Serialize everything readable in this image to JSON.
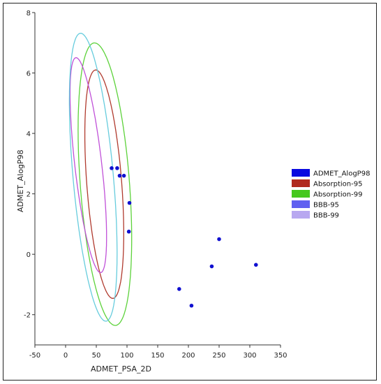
{
  "chart_data": {
    "type": "scatter",
    "title": "",
    "xlabel": "ADMET_PSA_2D",
    "ylabel": "ADMET_AlogP98",
    "xlim": [
      -50,
      350
    ],
    "ylim": [
      -3,
      8
    ],
    "x_ticks": [
      -50,
      0,
      50,
      100,
      150,
      200,
      250,
      300,
      350
    ],
    "y_ticks": [
      -2,
      0,
      2,
      4,
      6,
      8
    ],
    "grid": false,
    "legend_position": "right",
    "series": [
      {
        "name": "ADMET_AlogP98",
        "kind": "points",
        "color": "#1010d0",
        "points": [
          [
            75,
            2.85
          ],
          [
            84,
            2.85
          ],
          [
            88,
            2.6
          ],
          [
            95,
            2.6
          ],
          [
            104,
            1.7
          ],
          [
            103,
            0.75
          ],
          [
            250,
            0.5
          ],
          [
            238,
            -0.4
          ],
          [
            310,
            -0.35
          ],
          [
            185,
            -1.15
          ],
          [
            205,
            -1.7
          ]
        ]
      },
      {
        "name": "Absorption-95",
        "kind": "ellipse",
        "color": "#b03a2e",
        "ellipse": {
          "center": [
            63,
            2.32
          ],
          "semi_major": 3.8,
          "semi_minor": 0.78,
          "angle_deg": 96
        }
      },
      {
        "name": "Absorption-99",
        "kind": "ellipse",
        "color": "#5cd23a",
        "ellipse": {
          "center": [
            64,
            2.32
          ],
          "semi_major": 4.7,
          "semi_minor": 1.1,
          "angle_deg": 96
        }
      },
      {
        "name": "BBB-95",
        "kind": "ellipse",
        "color": "#c050d8",
        "ellipse": {
          "center": [
            37,
            2.95
          ],
          "semi_major": 3.6,
          "semi_minor": 0.6,
          "angle_deg": 99
        }
      },
      {
        "name": "BBB-99",
        "kind": "ellipse",
        "color": "#66ccdd",
        "ellipse": {
          "center": [
            45,
            2.55
          ],
          "semi_major": 4.8,
          "semi_minor": 0.9,
          "angle_deg": 97
        }
      }
    ]
  },
  "legend": [
    {
      "label": "ADMET_AlogP98",
      "color": "#0a0ae0"
    },
    {
      "label": "Absorption-95",
      "color": "#b02a1e"
    },
    {
      "label": "Absorption-99",
      "color": "#46c81e"
    },
    {
      "label": "BBB-95",
      "color": "#6060f0"
    },
    {
      "label": "BBB-99",
      "color": "#b8a8f0"
    }
  ]
}
